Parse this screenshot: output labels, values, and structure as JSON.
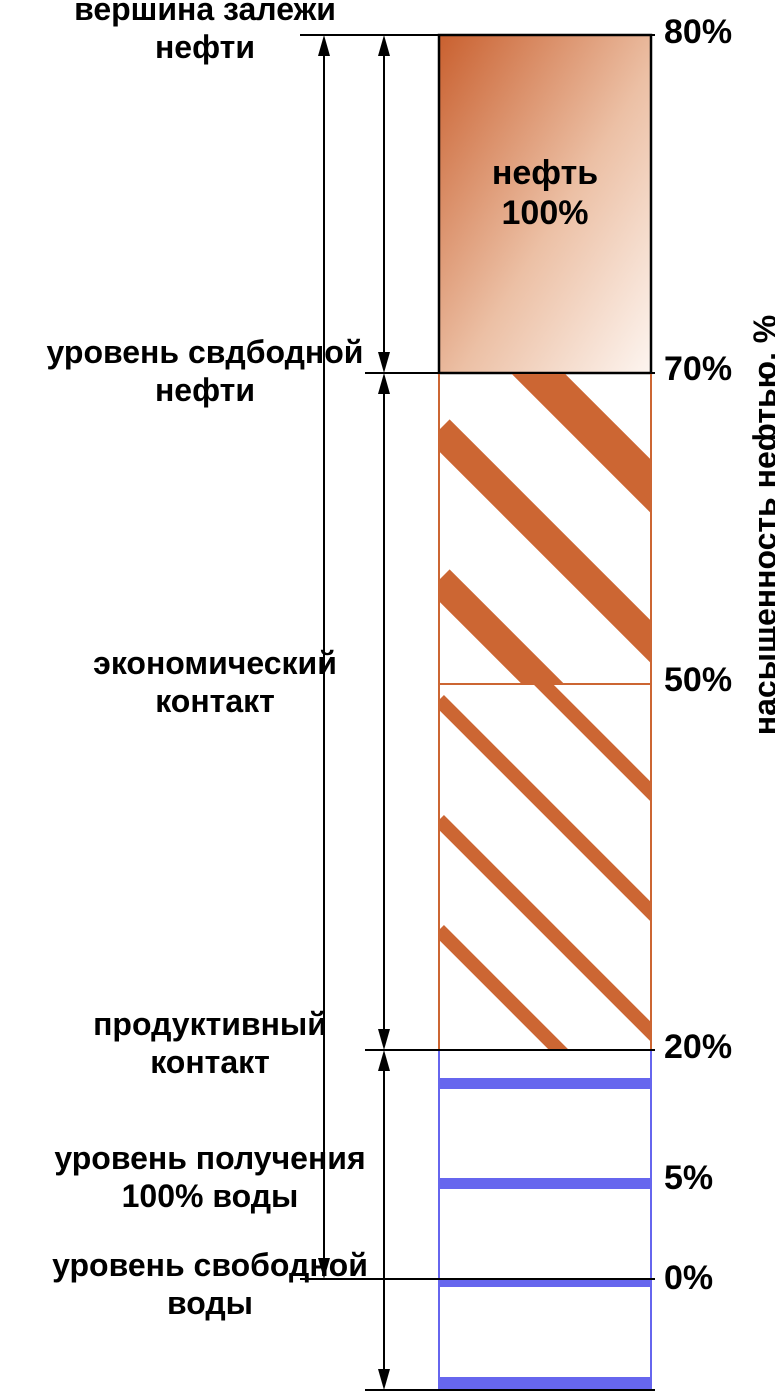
{
  "labels": {
    "top_of_deposit": [
      "вершина залежи",
      "нефти"
    ],
    "free_oil_level": [
      "уровень свдбодной",
      "нефти"
    ],
    "economic_contact": [
      "экономический",
      "контакт"
    ],
    "productive_contact": [
      "продуктивный",
      "контакт"
    ],
    "water_100_level": [
      "уровень получения",
      "100% воды"
    ],
    "free_water_level": [
      "уровень свободной",
      "воды"
    ]
  },
  "oil_zone": {
    "line1": "нефть",
    "line2": "100%"
  },
  "saturation_ticks": [
    "80%",
    "70%",
    "50%",
    "20%",
    "5%",
    "0%"
  ],
  "axis_label": "насыщенность нефтью, %",
  "colors": {
    "oil_dark": "#c9602f",
    "oil_light": "#fbeee6",
    "hatch": "#cc6633",
    "water": "#6666ee",
    "line": "#000000"
  }
}
